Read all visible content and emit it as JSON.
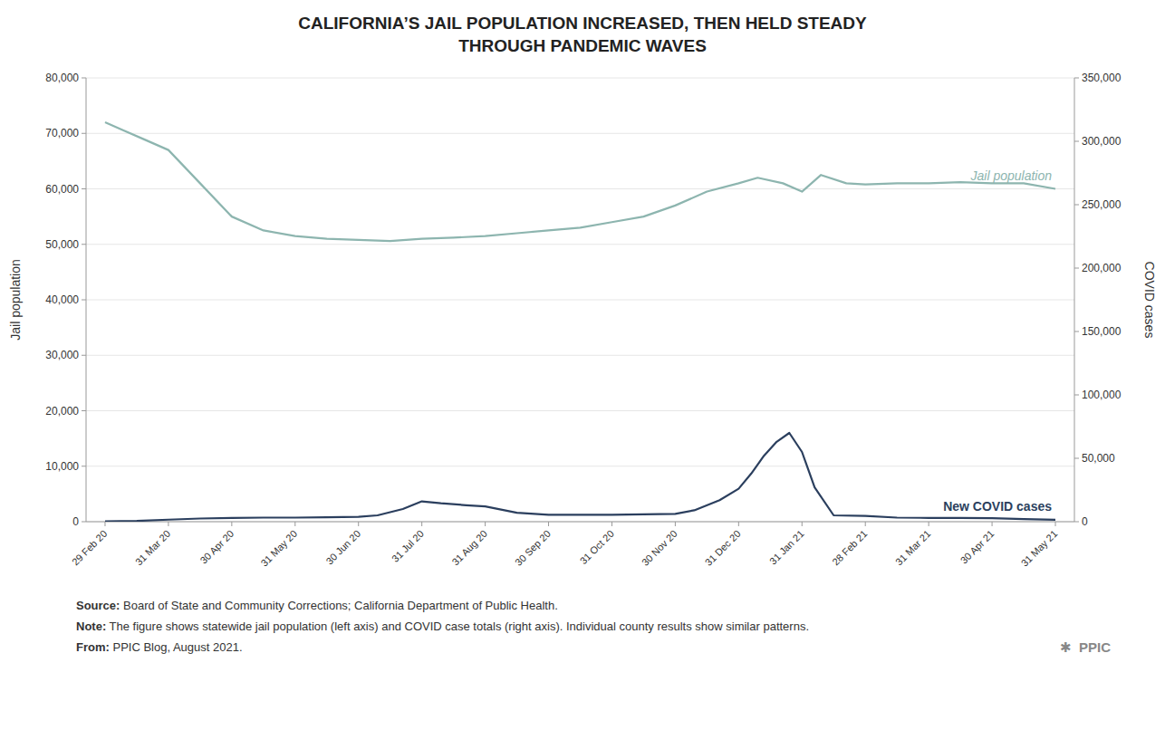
{
  "chart_data": {
    "type": "line",
    "title": "CALIFORNIA’S JAIL POPULATION INCREASED, THEN HELD STEADY\nTHROUGH PANDEMIC WAVES",
    "ylabel": "Jail population",
    "y2label": "COVID cases",
    "xlim": [
      -0.3,
      15.3
    ],
    "xticks": [
      {
        "value": 0,
        "label": "29 Feb 20"
      },
      {
        "value": 1,
        "label": "31 Mar 20"
      },
      {
        "value": 2,
        "label": "30 Apr 20"
      },
      {
        "value": 3,
        "label": "31 May 20"
      },
      {
        "value": 4,
        "label": "30 Jun 20"
      },
      {
        "value": 5,
        "label": "31 Jul 20"
      },
      {
        "value": 6,
        "label": "31 Aug 20"
      },
      {
        "value": 7,
        "label": "30 Sep 20"
      },
      {
        "value": 8,
        "label": "31 Oct 20"
      },
      {
        "value": 9,
        "label": "30 Nov 20"
      },
      {
        "value": 10,
        "label": "31 Dec 20"
      },
      {
        "value": 11,
        "label": "31 Jan 21"
      },
      {
        "value": 12,
        "label": "28 Feb 21"
      },
      {
        "value": 13,
        "label": "31 Mar 21"
      },
      {
        "value": 14,
        "label": "30 Apr 21"
      },
      {
        "value": 15,
        "label": "31 May 21"
      }
    ],
    "ylim": [
      0,
      80000
    ],
    "yticks": [
      0,
      {
        "value": 10000,
        "label": "10,000"
      },
      {
        "value": 20000,
        "label": "20,000"
      },
      {
        "value": 30000,
        "label": "30,000"
      },
      {
        "value": 40000,
        "label": "40,000"
      },
      {
        "value": 50000,
        "label": "50,000"
      },
      {
        "value": 60000,
        "label": "60,000"
      },
      {
        "value": 70000,
        "label": "70,000"
      },
      {
        "value": 80000,
        "label": "80,000"
      }
    ],
    "y2lim": [
      0,
      350000
    ],
    "y2ticks": [
      0,
      {
        "value": 50000,
        "label": "50,000"
      },
      {
        "value": 100000,
        "label": "100,000"
      },
      {
        "value": 150000,
        "label": "150,000"
      },
      {
        "value": 200000,
        "label": "200,000"
      },
      {
        "value": 250000,
        "label": "250,000"
      },
      {
        "value": 300000,
        "label": "300,000"
      },
      {
        "value": 350000,
        "label": "350,000"
      }
    ],
    "grid": true,
    "series": [
      {
        "name": "Jail population",
        "color": "#8db5af",
        "x": [
          0,
          0.3,
          0.6,
          1.0,
          1.5,
          2.0,
          2.5,
          3.0,
          3.5,
          4.0,
          4.5,
          5.0,
          5.5,
          6.0,
          6.5,
          7.0,
          7.5,
          8.0,
          8.5,
          9.0,
          9.5,
          10.0,
          10.3,
          10.7,
          11.0,
          11.3,
          11.7,
          12.0,
          12.5,
          13.0,
          13.5,
          14.0,
          14.5,
          15.0
        ],
        "values": [
          72000,
          70500,
          69000,
          67000,
          61000,
          55000,
          52500,
          51500,
          51000,
          50800,
          50600,
          51000,
          51200,
          51500,
          52000,
          52500,
          53000,
          54000,
          55000,
          57000,
          59500,
          61000,
          62000,
          61000,
          59500,
          62500,
          61000,
          60800,
          61000,
          61000,
          61200,
          61000,
          61000,
          60000
        ]
      },
      {
        "name": "New COVID cases",
        "color": "#2b3f5e",
        "axis": "y2",
        "x": [
          0,
          0.5,
          1.0,
          1.5,
          2.0,
          2.5,
          3.0,
          3.5,
          4.0,
          4.3,
          4.7,
          5.0,
          5.3,
          5.7,
          6.0,
          6.5,
          7.0,
          7.5,
          8.0,
          8.5,
          9.0,
          9.3,
          9.7,
          10.0,
          10.2,
          10.4,
          10.6,
          10.8,
          11.0,
          11.2,
          11.5,
          12.0,
          12.5,
          13.0,
          13.5,
          14.0,
          14.5,
          15.0
        ],
        "values": [
          200,
          600,
          1600,
          2500,
          3000,
          3200,
          3200,
          3500,
          3800,
          5000,
          10000,
          16000,
          14500,
          13000,
          12000,
          7000,
          5500,
          5500,
          5500,
          5800,
          6200,
          9000,
          17000,
          26000,
          38000,
          52000,
          63000,
          70000,
          55000,
          27000,
          5000,
          4500,
          3200,
          3000,
          3000,
          2800,
          2000,
          1500
        ]
      }
    ],
    "footnotes": [
      {
        "label": "Source:",
        "text": "Board of State and Community Corrections; California Department of Public Health."
      },
      {
        "label": "Note:",
        "text": "The figure shows statewide jail population (left axis) and COVID case totals (right axis). Individual county results show similar patterns."
      },
      {
        "label": "From:",
        "text": "PPIC Blog, August 2021."
      }
    ],
    "credit": "✱  PPIC"
  }
}
